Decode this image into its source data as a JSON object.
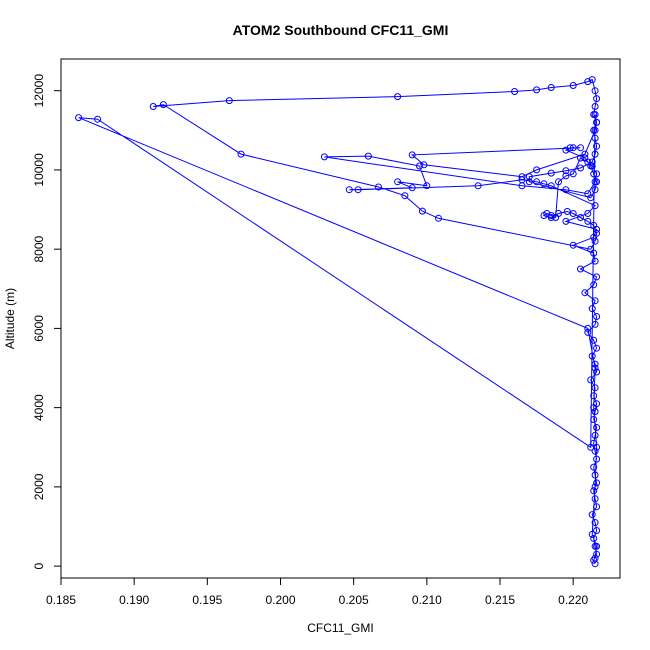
{
  "chart_data": {
    "type": "line",
    "title": "ATOM2 Southbound CFC11_GMI",
    "xlabel": "CFC11_GMI",
    "ylabel": "Altitude (m)",
    "xlim": [
      0.185,
      0.2232
    ],
    "ylim": [
      -300,
      12800
    ],
    "x_ticks": [
      "0.185",
      "0.190",
      "0.195",
      "0.200",
      "0.205",
      "0.210",
      "0.215",
      "0.220"
    ],
    "x_tick_values": [
      0.185,
      0.19,
      0.195,
      0.2,
      0.205,
      0.21,
      0.215,
      0.22
    ],
    "y_ticks": [
      "0",
      "2000",
      "4000",
      "6000",
      "8000",
      "10000",
      "12000"
    ],
    "y_tick_values": [
      0,
      2000,
      4000,
      6000,
      8000,
      10000,
      12000
    ],
    "grid": false,
    "marker": "open-circle",
    "series": [
      {
        "color": "#0000ff",
        "x": [
          0.2215,
          0.2214,
          0.2216,
          0.2215,
          0.2214,
          0.2216,
          0.2215,
          0.2213,
          0.2216,
          0.2215,
          0.2214,
          0.2216,
          0.2215,
          0.2214,
          0.2216,
          0.2215,
          0.2214,
          0.2215,
          0.2216,
          0.2214,
          0.2215,
          0.2216,
          0.2214,
          0.2215,
          0.2212,
          0.2216,
          0.2215,
          0.2213,
          0.2216,
          0.2214,
          0.221,
          0.2215,
          0.2216,
          0.2213,
          0.2215,
          0.2208,
          0.2214,
          0.2216,
          0.2205,
          0.2215,
          0.2214,
          0.22,
          0.2214,
          0.2216,
          0.2195,
          0.221,
          0.2215,
          0.2185,
          0.218,
          0.2175,
          0.2165,
          0.2135,
          0.2053,
          0.2047,
          0.209,
          0.208,
          0.21,
          0.2095,
          0.206,
          0.203,
          0.2165,
          0.2195,
          0.221,
          0.2215,
          0.2216,
          0.2213,
          0.221,
          0.2205,
          0.22,
          0.2195,
          0.219,
          0.2188,
          0.2185,
          0.2182,
          0.218,
          0.2185,
          0.219,
          0.2196,
          0.22,
          0.2205,
          0.221,
          0.2214,
          0.2216,
          0.2215,
          0.2212,
          0.2108,
          0.2097,
          0.2085,
          0.2067,
          0.1973,
          0.192,
          0.1913,
          0.1965,
          0.208,
          0.216,
          0.2175,
          0.2185,
          0.22,
          0.221,
          0.2213,
          0.2215,
          0.2216,
          0.2215,
          0.2214,
          0.2216,
          0.2215,
          0.2208,
          0.2175,
          0.2165,
          0.2098,
          0.209,
          0.2205,
          0.22,
          0.2198,
          0.2195,
          0.2208,
          0.2212,
          0.2214,
          0.2216,
          0.2215,
          0.2212,
          0.217,
          0.217,
          0.2185,
          0.2195,
          0.2205,
          0.2213,
          0.2215,
          0.2216,
          0.2215,
          0.2214,
          0.2216,
          0.2215,
          0.2212,
          0.1875,
          0.1862,
          0.221,
          0.2215,
          0.2214,
          0.2216,
          0.2215,
          0.2213,
          0.2216,
          0.2215
        ],
        "y": [
          60,
          150,
          300,
          500,
          700,
          900,
          1100,
          1300,
          1500,
          1700,
          1900,
          2100,
          2300,
          2500,
          2700,
          2900,
          3100,
          3300,
          3500,
          3700,
          3900,
          4100,
          4300,
          4500,
          4700,
          4900,
          5100,
          5300,
          5500,
          5700,
          5900,
          6100,
          6300,
          6500,
          6700,
          6900,
          7100,
          7300,
          7500,
          7700,
          7900,
          8100,
          8300,
          8500,
          8700,
          8900,
          9100,
          9600,
          9650,
          9700,
          9750,
          9600,
          9500,
          9500,
          9550,
          9700,
          9600,
          10100,
          10350,
          10330,
          9600,
          9500,
          9400,
          9700,
          9900,
          10100,
          10200,
          10300,
          9900,
          9850,
          9700,
          8800,
          8850,
          8900,
          8850,
          8800,
          8900,
          8950,
          8900,
          8800,
          8700,
          8600,
          8400,
          8200,
          8000,
          8780,
          8960,
          9350,
          9570,
          10400,
          11650,
          11600,
          11750,
          11850,
          11980,
          12020,
          12080,
          12130,
          12230,
          12280,
          12000,
          11800,
          11600,
          11400,
          11200,
          11000,
          10400,
          10000,
          9830,
          10130,
          10380,
          10560,
          10560,
          10560,
          10500,
          10300,
          10100,
          9900,
          9700,
          9500,
          9300,
          9700,
          9830,
          9920,
          9980,
          10050,
          10200,
          10400,
          10600,
          10800,
          11000,
          11200,
          11400,
          3000,
          11280,
          11320,
          6000,
          5000,
          4000,
          3000,
          2000,
          800,
          500,
          200
        ]
      }
    ]
  }
}
